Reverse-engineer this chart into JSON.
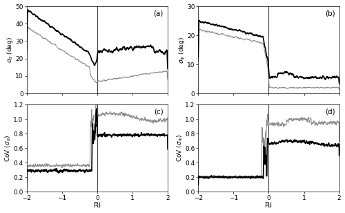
{
  "title": "",
  "xlabel": "Ri",
  "panel_labels": [
    "(a)",
    "(b)",
    "(c)",
    "(d)"
  ],
  "ylabel_a": "$\\sigma_{\\theta}$ (deg)",
  "ylabel_b": "$\\sigma_{\\Phi}$ (deg)",
  "ylabel_c": "CoV ($\\sigma_{\\theta}$)",
  "ylabel_d": "CoV ($\\sigma_{\\Phi}$)",
  "xlim": [
    -2,
    2
  ],
  "ylim_a": [
    0,
    50
  ],
  "ylim_b": [
    0,
    30
  ],
  "ylim_c": [
    0,
    1.2
  ],
  "ylim_d": [
    0,
    1.2
  ],
  "yticks_a": [
    0,
    10,
    20,
    30,
    40,
    50
  ],
  "yticks_b": [
    0,
    10,
    20,
    30
  ],
  "yticks_c": [
    0,
    0.2,
    0.4,
    0.6,
    0.8,
    1.0,
    1.2
  ],
  "yticks_d": [
    0,
    0.2,
    0.4,
    0.6,
    0.8,
    1.0,
    1.2
  ],
  "xticks": [
    -2,
    -1,
    0,
    1,
    2
  ],
  "color_thick": "#000000",
  "color_thin": "#888888",
  "linewidth_thick": 1.2,
  "linewidth_thin": 0.7,
  "background": "#ffffff",
  "vline_color": "#444444",
  "vline_lw": 0.8
}
